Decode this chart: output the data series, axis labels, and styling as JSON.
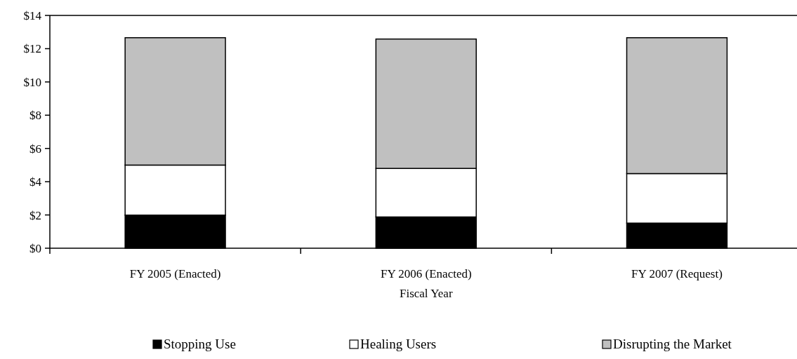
{
  "chart_data": {
    "type": "bar",
    "stacked": true,
    "xlabel": "Fiscal Year",
    "categories": [
      "FY 2005 (Enacted)",
      "FY 2006 (Enacted)",
      "FY 2007 (Request)"
    ],
    "series": [
      {
        "name": "Stopping Use",
        "color": "#000000",
        "values": [
          1.99,
          1.88,
          1.51
        ]
      },
      {
        "name": "Healing Users",
        "color": "#ffffff",
        "values": [
          3.01,
          2.92,
          2.98
        ]
      },
      {
        "name": "Disrupting the Market",
        "color": "#c0c0c0",
        "values": [
          7.66,
          7.78,
          8.17
        ]
      }
    ],
    "ylim": [
      0,
      14
    ],
    "yticks": [
      {
        "value": 0,
        "label": "$0"
      },
      {
        "value": 2,
        "label": "$2"
      },
      {
        "value": 4,
        "label": "$4"
      },
      {
        "value": 6,
        "label": "$6"
      },
      {
        "value": 8,
        "label": "$8"
      },
      {
        "value": 10,
        "label": "$10"
      },
      {
        "value": 12,
        "label": "$12"
      },
      {
        "value": 14,
        "label": "$14"
      }
    ],
    "grid": false,
    "legend": "bottom"
  }
}
